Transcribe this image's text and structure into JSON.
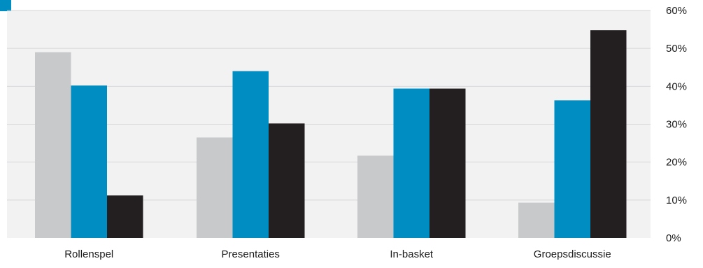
{
  "chart_data": {
    "type": "bar",
    "categories": [
      "Rollenspel",
      "Presentaties",
      "In-basket",
      "Groepsdiscussie"
    ],
    "series": [
      {
        "color": "#c8c9cb",
        "values": [
          49,
          26.5,
          21.7,
          9.3
        ]
      },
      {
        "color": "#008dc1",
        "values": [
          40.2,
          44,
          39.4,
          36.3
        ]
      },
      {
        "color": "#231f20",
        "values": [
          11.2,
          30.2,
          39.4,
          54.8
        ]
      }
    ],
    "yticks": [
      "0%",
      "10%",
      "20%",
      "30%",
      "40%",
      "50%",
      "60%"
    ],
    "ylim": [
      0,
      60
    ],
    "grid": true,
    "title": "",
    "xlabel": "",
    "ylabel": "",
    "colors": {
      "plot_background": "#f2f2f3",
      "gridline": "#d7d7d9",
      "accent_marker": "#008dc1"
    }
  }
}
